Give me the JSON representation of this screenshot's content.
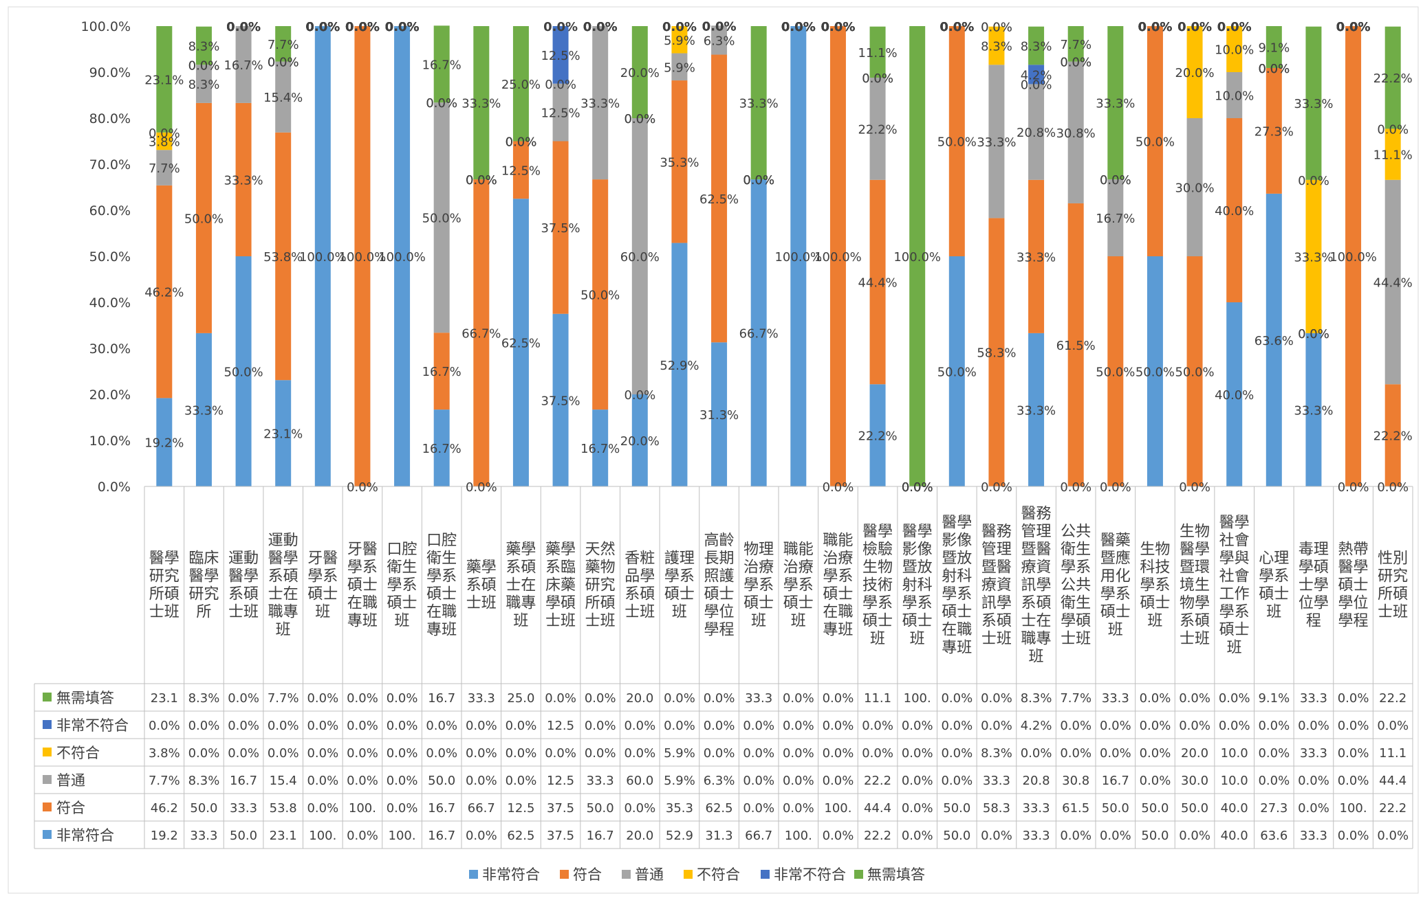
{
  "chart_data": {
    "type": "bar",
    "stacked": "percent",
    "grid": false,
    "legend_position": "bottom",
    "ylim": [
      0,
      100
    ],
    "yticks": [
      "0.0%",
      "10.0%",
      "20.0%",
      "30.0%",
      "40.0%",
      "50.0%",
      "60.0%",
      "70.0%",
      "80.0%",
      "90.0%",
      "100.0%"
    ],
    "categories": [
      "醫學研究所碩士班",
      "臨床醫學研究所",
      "運動醫學系碩士班",
      "運動醫學系碩士在職專班",
      "牙醫學系碩士班",
      "牙醫學系碩士在職專班",
      "口腔衛生學系碩士班",
      "口腔衛生學系碩士在職專班",
      "藥學系碩士班",
      "藥學系碩士在職專班",
      "藥學系臨床藥學碩士班",
      "天然藥物研究所碩士班",
      "香粧品學系碩士班",
      "護理學系碩士班",
      "高齡長期照護碩士學位學程",
      "物理治療學系碩士班",
      "職能治療學系碩士班",
      "職能治療學系碩士在職專班",
      "醫學檢驗生物技術學系碩士班",
      "醫學影像暨放射科學系碩士班",
      "醫學影像暨放射科學系碩士在職專班",
      "醫務管理暨醫療資訊學系碩士班",
      "醫務管理暨醫療資訊學系碩士在職專班",
      "公共衛生學系公共衛生學碩士班",
      "醫藥暨應用化學系碩士班",
      "生物科技學系碩士班",
      "生物醫學暨環境生物學系碩士班",
      "醫學社會學與社會工作學系碩士班",
      "心理學系碩士班",
      "毒理學碩士學位學程",
      "熱帶醫學碩士學位學程",
      "性別研究所碩士班"
    ],
    "series": [
      {
        "name": "非常符合",
        "color": "#5B9BD5",
        "values": [
          19.2,
          33.3,
          50.0,
          23.1,
          100.0,
          0.0,
          100.0,
          16.7,
          0.0,
          62.5,
          37.5,
          16.7,
          20.0,
          52.9,
          31.3,
          66.7,
          100.0,
          0.0,
          22.2,
          0.0,
          50.0,
          0.0,
          33.3,
          0.0,
          0.0,
          50.0,
          0.0,
          40.0,
          63.6,
          33.3,
          0.0,
          0.0
        ],
        "table_values": [
          "19.2",
          "33.3",
          "50.0",
          "23.1",
          "100.",
          "0.0%",
          "100.",
          "16.7",
          "0.0%",
          "62.5",
          "37.5",
          "16.7",
          "20.0",
          "52.9",
          "31.3",
          "66.7",
          "100.",
          "0.0%",
          "22.2",
          "0.0%",
          "50.0",
          "0.0%",
          "33.3",
          "0.0%",
          "0.0%",
          "50.0",
          "0.0%",
          "40.0",
          "63.6",
          "33.3",
          "0.0%",
          "0.0%"
        ]
      },
      {
        "name": "符合",
        "color": "#ED7D31",
        "values": [
          46.2,
          50.0,
          33.3,
          53.8,
          0.0,
          100.0,
          0.0,
          16.7,
          66.7,
          12.5,
          37.5,
          50.0,
          0.0,
          35.3,
          62.5,
          0.0,
          0.0,
          100.0,
          44.4,
          0.0,
          50.0,
          58.3,
          33.3,
          61.5,
          50.0,
          50.0,
          50.0,
          40.0,
          27.3,
          0.0,
          100.0,
          22.2
        ],
        "table_values": [
          "46.2",
          "50.0",
          "33.3",
          "53.8",
          "0.0%",
          "100.",
          "0.0%",
          "16.7",
          "66.7",
          "12.5",
          "37.5",
          "50.0",
          "0.0%",
          "35.3",
          "62.5",
          "0.0%",
          "0.0%",
          "100.",
          "44.4",
          "0.0%",
          "50.0",
          "58.3",
          "33.3",
          "61.5",
          "50.0",
          "50.0",
          "50.0",
          "40.0",
          "27.3",
          "0.0%",
          "100.",
          "22.2"
        ]
      },
      {
        "name": "普通",
        "color": "#A5A5A5",
        "values": [
          7.7,
          8.3,
          16.7,
          15.4,
          0.0,
          0.0,
          0.0,
          50.0,
          0.0,
          0.0,
          12.5,
          33.3,
          60.0,
          5.9,
          6.3,
          0.0,
          0.0,
          0.0,
          22.2,
          0.0,
          0.0,
          33.3,
          20.8,
          30.8,
          16.7,
          0.0,
          30.0,
          10.0,
          0.0,
          0.0,
          0.0,
          44.4
        ],
        "table_values": [
          "7.7%",
          "8.3%",
          "16.7",
          "15.4",
          "0.0%",
          "0.0%",
          "0.0%",
          "50.0",
          "0.0%",
          "0.0%",
          "12.5",
          "33.3",
          "60.0",
          "5.9%",
          "6.3%",
          "0.0%",
          "0.0%",
          "0.0%",
          "22.2",
          "0.0%",
          "0.0%",
          "33.3",
          "20.8",
          "30.8",
          "16.7",
          "0.0%",
          "30.0",
          "10.0",
          "0.0%",
          "0.0%",
          "0.0%",
          "44.4"
        ]
      },
      {
        "name": "不符合",
        "color": "#FFC000",
        "values": [
          3.8,
          0.0,
          0.0,
          0.0,
          0.0,
          0.0,
          0.0,
          0.0,
          0.0,
          0.0,
          0.0,
          0.0,
          0.0,
          5.9,
          0.0,
          0.0,
          0.0,
          0.0,
          0.0,
          0.0,
          0.0,
          8.3,
          0.0,
          0.0,
          0.0,
          0.0,
          20.0,
          10.0,
          0.0,
          33.3,
          0.0,
          11.1
        ],
        "table_values": [
          "3.8%",
          "0.0%",
          "0.0%",
          "0.0%",
          "0.0%",
          "0.0%",
          "0.0%",
          "0.0%",
          "0.0%",
          "0.0%",
          "0.0%",
          "0.0%",
          "0.0%",
          "5.9%",
          "0.0%",
          "0.0%",
          "0.0%",
          "0.0%",
          "0.0%",
          "0.0%",
          "0.0%",
          "8.3%",
          "0.0%",
          "0.0%",
          "0.0%",
          "0.0%",
          "20.0",
          "10.0",
          "0.0%",
          "33.3",
          "0.0%",
          "11.1"
        ]
      },
      {
        "name": "非常不符合",
        "color": "#4472C4",
        "values": [
          0.0,
          0.0,
          0.0,
          0.0,
          0.0,
          0.0,
          0.0,
          0.0,
          0.0,
          0.0,
          12.5,
          0.0,
          0.0,
          0.0,
          0.0,
          0.0,
          0.0,
          0.0,
          0.0,
          0.0,
          0.0,
          0.0,
          4.2,
          0.0,
          0.0,
          0.0,
          0.0,
          0.0,
          0.0,
          0.0,
          0.0,
          0.0
        ],
        "table_values": [
          "0.0%",
          "0.0%",
          "0.0%",
          "0.0%",
          "0.0%",
          "0.0%",
          "0.0%",
          "0.0%",
          "0.0%",
          "0.0%",
          "12.5",
          "0.0%",
          "0.0%",
          "0.0%",
          "0.0%",
          "0.0%",
          "0.0%",
          "0.0%",
          "0.0%",
          "0.0%",
          "0.0%",
          "0.0%",
          "4.2%",
          "0.0%",
          "0.0%",
          "0.0%",
          "0.0%",
          "0.0%",
          "0.0%",
          "0.0%",
          "0.0%",
          "0.0%"
        ]
      },
      {
        "name": "無需填答",
        "color": "#70AD47",
        "values": [
          23.1,
          8.3,
          0.0,
          7.7,
          0.0,
          0.0,
          0.0,
          16.7,
          33.3,
          25.0,
          0.0,
          0.0,
          20.0,
          0.0,
          0.0,
          33.3,
          0.0,
          0.0,
          11.1,
          100.0,
          0.0,
          0.0,
          8.3,
          7.7,
          33.3,
          0.0,
          0.0,
          0.0,
          9.1,
          33.3,
          0.0,
          22.2
        ],
        "table_values": [
          "23.1",
          "8.3%",
          "0.0%",
          "7.7%",
          "0.0%",
          "0.0%",
          "0.0%",
          "16.7",
          "33.3",
          "25.0",
          "0.0%",
          "0.0%",
          "20.0",
          "0.0%",
          "0.0%",
          "33.3",
          "0.0%",
          "0.0%",
          "11.1",
          "100.",
          "0.0%",
          "0.0%",
          "8.3%",
          "7.7%",
          "33.3",
          "0.0%",
          "0.0%",
          "0.0%",
          "9.1%",
          "33.3",
          "0.0%",
          "22.2"
        ]
      }
    ],
    "table_row_order": [
      "無需填答",
      "非常不符合",
      "不符合",
      "普通",
      "符合",
      "非常符合"
    ],
    "legend_order": [
      "非常符合",
      "符合",
      "普通",
      "不符合",
      "非常不符合",
      "無需填答"
    ]
  }
}
